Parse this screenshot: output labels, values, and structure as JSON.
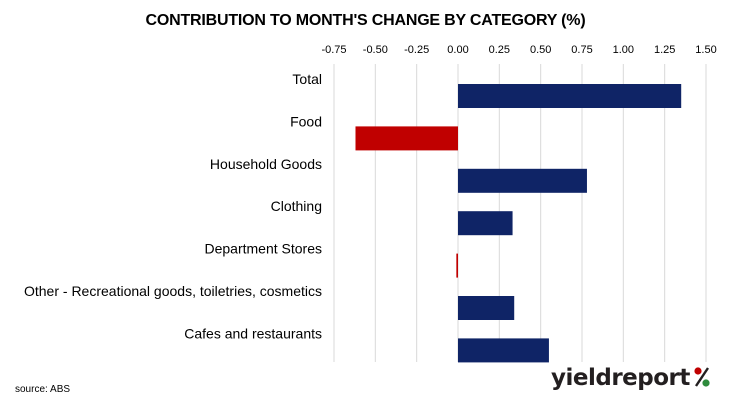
{
  "chart_data": {
    "type": "bar",
    "orientation": "horizontal",
    "title": "CONTRIBUTION TO MONTH'S CHANGE BY CATEGORY (%)",
    "categories": [
      "Total",
      "Food",
      "Household Goods",
      "Clothing",
      "Department Stores",
      "Other - Recreational goods, toiletries, cosmetics",
      "Cafes and restaurants"
    ],
    "values": [
      1.35,
      -0.62,
      0.78,
      0.33,
      -0.01,
      0.34,
      0.55
    ],
    "x_ticks": [
      "-0.75",
      "-0.50",
      "-0.25",
      "0.00",
      "0.25",
      "0.50",
      "0.75",
      "1.00",
      "1.25",
      "1.50"
    ],
    "xlim": [
      -0.75,
      1.5
    ],
    "x_axis_position": "top",
    "grid": true,
    "colors": {
      "positive": "#0f2466",
      "negative": "#c00000",
      "grid": "#d9d9d9"
    }
  },
  "source_note": "source: ABS",
  "logo": {
    "text": "yieldreport",
    "symbol": "%"
  }
}
